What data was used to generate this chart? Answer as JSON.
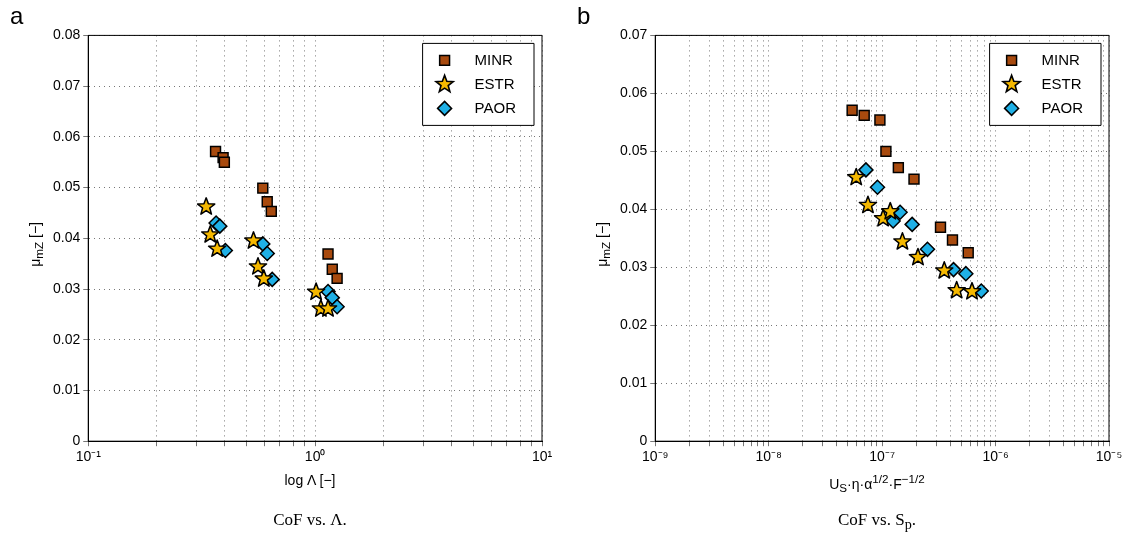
{
  "chart_data": [
    {
      "type": "scatter",
      "title": "a",
      "xlabel": "log Λ [−]",
      "ylabel": "μ$_{mZ}$ [−]",
      "annotations": [
        "CoF vs. Λ."
      ],
      "log": "x",
      "grid": true,
      "legend": "top right",
      "xlim": [
        0.1,
        10
      ],
      "xticks": [
        {
          "value": 0.1,
          "label": "10⁻¹"
        },
        {
          "value": 0.2,
          "label": null
        },
        {
          "value": 0.3,
          "label": null
        },
        {
          "value": 0.4,
          "label": null
        },
        {
          "value": 0.5,
          "label": null
        },
        {
          "value": 0.6,
          "label": null
        },
        {
          "value": 0.7,
          "label": null
        },
        {
          "value": 0.8,
          "label": null
        },
        {
          "value": 0.9,
          "label": null
        },
        {
          "value": 1,
          "label": "10⁰"
        },
        {
          "value": 2,
          "label": null
        },
        {
          "value": 3,
          "label": null
        },
        {
          "value": 4,
          "label": null
        },
        {
          "value": 5,
          "label": null
        },
        {
          "value": 6,
          "label": null
        },
        {
          "value": 7,
          "label": null
        },
        {
          "value": 8,
          "label": null
        },
        {
          "value": 9,
          "label": null
        },
        {
          "value": 10,
          "label": "10¹"
        }
      ],
      "ylim": [
        0,
        0.08
      ],
      "yticks": [
        0,
        0.01,
        0.02,
        0.03,
        0.04,
        0.05,
        0.06,
        0.07,
        0.08
      ],
      "series": [
        {
          "name": "MINR",
          "color": "#a84a0e",
          "marker": "square",
          "x": [
            0.364,
            0.393,
            0.398,
            0.588,
            0.615,
            0.641,
            1.14,
            1.19,
            1.25
          ],
          "values": [
            0.0571,
            0.0559,
            0.055,
            0.0499,
            0.0472,
            0.0453,
            0.0369,
            0.0339,
            0.0321
          ]
        },
        {
          "name": "ESTR",
          "color": "#f5b800",
          "marker": "star",
          "x": [
            0.331,
            0.345,
            0.37,
            0.535,
            0.56,
            0.594,
            1.01,
            1.06,
            1.14
          ],
          "values": [
            0.0462,
            0.0407,
            0.0379,
            0.0395,
            0.0344,
            0.032,
            0.0294,
            0.0261,
            0.0261
          ]
        },
        {
          "name": "PAOR",
          "color": "#1fb0e6",
          "marker": "diamond",
          "x": [
            0.366,
            0.38,
            0.402,
            0.588,
            0.615,
            0.647,
            1.14,
            1.19,
            1.25
          ],
          "values": [
            0.043,
            0.0424,
            0.0376,
            0.0389,
            0.037,
            0.0319,
            0.0295,
            0.0283,
            0.0265
          ]
        }
      ]
    },
    {
      "type": "scatter",
      "title": "b",
      "xlabel": "U$_{S}$·η·α$^{1/2}$·F$^{−1/2}$",
      "ylabel": "μ$_{mZ}$ [−]",
      "annotations": [
        "CoF vs. S$_{p}$."
      ],
      "log": "x",
      "grid": true,
      "legend": "top right",
      "xlim": [
        1e-09,
        1e-05
      ],
      "xticks": [
        {
          "value": 1e-09,
          "label": "10⁻⁹"
        },
        {
          "value": 2e-09,
          "label": null
        },
        {
          "value": 3e-09,
          "label": null
        },
        {
          "value": 4e-09,
          "label": null
        },
        {
          "value": 5e-09,
          "label": null
        },
        {
          "value": 6e-09,
          "label": null
        },
        {
          "value": 7e-09,
          "label": null
        },
        {
          "value": 8e-09,
          "label": null
        },
        {
          "value": 9e-09,
          "label": null
        },
        {
          "value": 1e-08,
          "label": "10⁻⁸"
        },
        {
          "value": 2e-08,
          "label": null
        },
        {
          "value": 3e-08,
          "label": null
        },
        {
          "value": 4e-08,
          "label": null
        },
        {
          "value": 5e-08,
          "label": null
        },
        {
          "value": 6e-08,
          "label": null
        },
        {
          "value": 7e-08,
          "label": null
        },
        {
          "value": 8e-08,
          "label": null
        },
        {
          "value": 9e-08,
          "label": null
        },
        {
          "value": 1e-07,
          "label": "10⁻⁷"
        },
        {
          "value": 2e-07,
          "label": null
        },
        {
          "value": 3e-07,
          "label": null
        },
        {
          "value": 4e-07,
          "label": null
        },
        {
          "value": 5e-07,
          "label": null
        },
        {
          "value": 6e-07,
          "label": null
        },
        {
          "value": 7e-07,
          "label": null
        },
        {
          "value": 8e-07,
          "label": null
        },
        {
          "value": 9e-07,
          "label": null
        },
        {
          "value": 1e-06,
          "label": "10⁻⁶"
        },
        {
          "value": 2e-06,
          "label": null
        },
        {
          "value": 3e-06,
          "label": null
        },
        {
          "value": 4e-06,
          "label": null
        },
        {
          "value": 5e-06,
          "label": null
        },
        {
          "value": 6e-06,
          "label": null
        },
        {
          "value": 7e-06,
          "label": null
        },
        {
          "value": 8e-06,
          "label": null
        },
        {
          "value": 9e-06,
          "label": null
        },
        {
          "value": 1e-05,
          "label": "10⁻⁵"
        }
      ],
      "ylim": [
        0,
        0.07
      ],
      "yticks": [
        0,
        0.01,
        0.02,
        0.03,
        0.04,
        0.05,
        0.06,
        0.07
      ],
      "series": [
        {
          "name": "MINR",
          "color": "#a84a0e",
          "marker": "square",
          "x": [
            5.44e-08,
            6.95e-08,
            9.56e-08,
            1.08e-07,
            1.39e-07,
            1.91e-07,
            3.27e-07,
            4.17e-07,
            5.74e-07
          ],
          "values": [
            0.0571,
            0.0562,
            0.0554,
            0.05,
            0.0472,
            0.0452,
            0.0369,
            0.0347,
            0.0325
          ]
        },
        {
          "name": "ESTR",
          "color": "#f5b800",
          "marker": "star",
          "x": [
            5.91e-08,
            7.5e-08,
            1.02e-07,
            1.18e-07,
            1.51e-07,
            2.07e-07,
            3.53e-07,
            4.54e-07,
            6.2e-07
          ],
          "values": [
            0.0455,
            0.0407,
            0.0384,
            0.0396,
            0.0344,
            0.0317,
            0.0294,
            0.026,
            0.0258
          ]
        },
        {
          "name": "PAOR",
          "color": "#1fb0e6",
          "marker": "diamond",
          "x": [
            7.2e-08,
            9.1e-08,
            1.25e-07,
            1.44e-07,
            1.84e-07,
            2.51e-07,
            4.26e-07,
            5.47e-07,
            7.48e-07
          ],
          "values": [
            0.0468,
            0.0438,
            0.038,
            0.0395,
            0.0374,
            0.0331,
            0.0296,
            0.0289,
            0.0259
          ]
        }
      ]
    }
  ]
}
